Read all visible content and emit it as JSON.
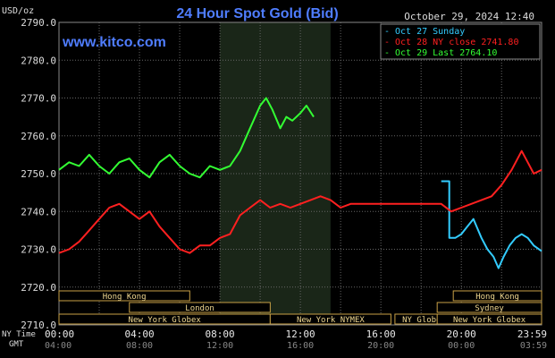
{
  "chart_data": {
    "type": "line",
    "title": "24 Hour Spot Gold (Bid)",
    "timestamp": "October 29, 2024 12:40",
    "brand": "www.kitco.com",
    "ylabel": "USD/oz",
    "ylim": [
      2710,
      2790
    ],
    "yticks": [
      "2790.0",
      "2780.0",
      "2770.0",
      "2760.0",
      "2750.0",
      "2740.0",
      "2730.0",
      "2720.0",
      "2710.0"
    ],
    "xticks_ny": [
      "00:00",
      "04:00",
      "08:00",
      "12:00",
      "16:00",
      "20:00",
      "23:59"
    ],
    "xticks_gmt": [
      "04:00",
      "08:00",
      "12:00",
      "16:00",
      "20:00",
      "00:00",
      "03:59"
    ],
    "xaxis_row_labels": [
      "NY Time",
      "GMT"
    ],
    "grid": true,
    "legend_position": "top-right",
    "colors": {
      "sunday": "#33ccff",
      "close": "#ff2020",
      "last": "#33ff33",
      "session_box": "#c8a046",
      "highlight": "#1a2618"
    },
    "series": [
      {
        "name": "Oct 27 Sunday",
        "color": "#33ccff",
        "x": [
          19.0,
          19.4,
          19.4,
          19.7,
          20.0,
          20.3,
          20.6,
          21.0,
          21.3,
          21.6,
          21.85,
          22.1,
          22.4,
          22.7,
          23.0,
          23.3,
          23.6,
          23.99
        ],
        "y": [
          2748,
          2748,
          2733,
          2733,
          2734,
          2736,
          2738,
          2733,
          2730,
          2728,
          2725,
          2728,
          2731,
          2733,
          2734,
          2733,
          2731,
          2729.5
        ]
      },
      {
        "name": "Oct 28 NY close 2741.80",
        "color": "#ff2020",
        "x": [
          0,
          0.5,
          1.0,
          1.5,
          2.0,
          2.5,
          3.0,
          3.5,
          4.0,
          4.5,
          5.0,
          5.5,
          6.0,
          6.5,
          7.0,
          7.5,
          8.0,
          8.5,
          9.0,
          9.5,
          10.0,
          10.5,
          11.0,
          11.5,
          12.0,
          12.5,
          13.0,
          13.5,
          14.0,
          14.5,
          15.0,
          15.5,
          16.0,
          16.5,
          17.0,
          17.5,
          18.0,
          18.5,
          19.0,
          19.5,
          20.0,
          20.5,
          21.0,
          21.5,
          22.0,
          22.5,
          23.0,
          23.3,
          23.6,
          23.99
        ],
        "y": [
          2729,
          2730,
          2732,
          2735,
          2738,
          2741,
          2742,
          2740,
          2738,
          2740,
          2736,
          2733,
          2730,
          2729,
          2731,
          2731,
          2733,
          2734,
          2739,
          2741,
          2743,
          2741,
          2742,
          2741,
          2742,
          2743,
          2744,
          2743,
          2741,
          2742,
          2742,
          2742,
          2742,
          2742,
          2742,
          2742,
          2742,
          2742,
          2742,
          2740,
          2741,
          2742,
          2743,
          2744,
          2747,
          2751,
          2756,
          2753,
          2750,
          2751
        ]
      },
      {
        "name": "Oct 29 Last 2764.10",
        "color": "#33ff33",
        "x": [
          0,
          0.5,
          1.0,
          1.5,
          2.0,
          2.5,
          3.0,
          3.5,
          4.0,
          4.5,
          5.0,
          5.5,
          6.0,
          6.5,
          7.0,
          7.5,
          8.0,
          8.5,
          9.0,
          9.5,
          10.0,
          10.3,
          10.6,
          11.0,
          11.3,
          11.6,
          12.0,
          12.3,
          12.66
        ],
        "y": [
          2751,
          2753,
          2752,
          2755,
          2752,
          2750,
          2753,
          2754,
          2751,
          2749,
          2753,
          2755,
          2752,
          2750,
          2749,
          2752,
          2751,
          2752,
          2756,
          2762,
          2768,
          2770,
          2767,
          2762,
          2765,
          2764,
          2766,
          2768,
          2765
        ]
      }
    ],
    "sessions": [
      {
        "name": "Hong Kong",
        "row": 1,
        "x0": 0,
        "x1": 6.5
      },
      {
        "name": "London",
        "row": 2,
        "x0": 3.5,
        "x1": 10.5
      },
      {
        "name": "New York Globex",
        "row": 3,
        "x0": 0,
        "x1": 10.5
      },
      {
        "name": "New York NYMEX",
        "row": 3,
        "x0": 10.5,
        "x1": 16.5
      },
      {
        "name": "NY Globex",
        "row": 3,
        "x0": 16.7,
        "x1": 19.6
      },
      {
        "name": "Hong Kong",
        "row": 1,
        "x0": 19.6,
        "x1": 23.99
      },
      {
        "name": "Sydney",
        "row": 2,
        "x0": 18.8,
        "x1": 23.99
      },
      {
        "name": "New York Globex",
        "row": 3,
        "x0": 18.8,
        "x1": 23.99
      }
    ],
    "highlight": {
      "x0": 8.0,
      "x1": 13.5
    }
  }
}
